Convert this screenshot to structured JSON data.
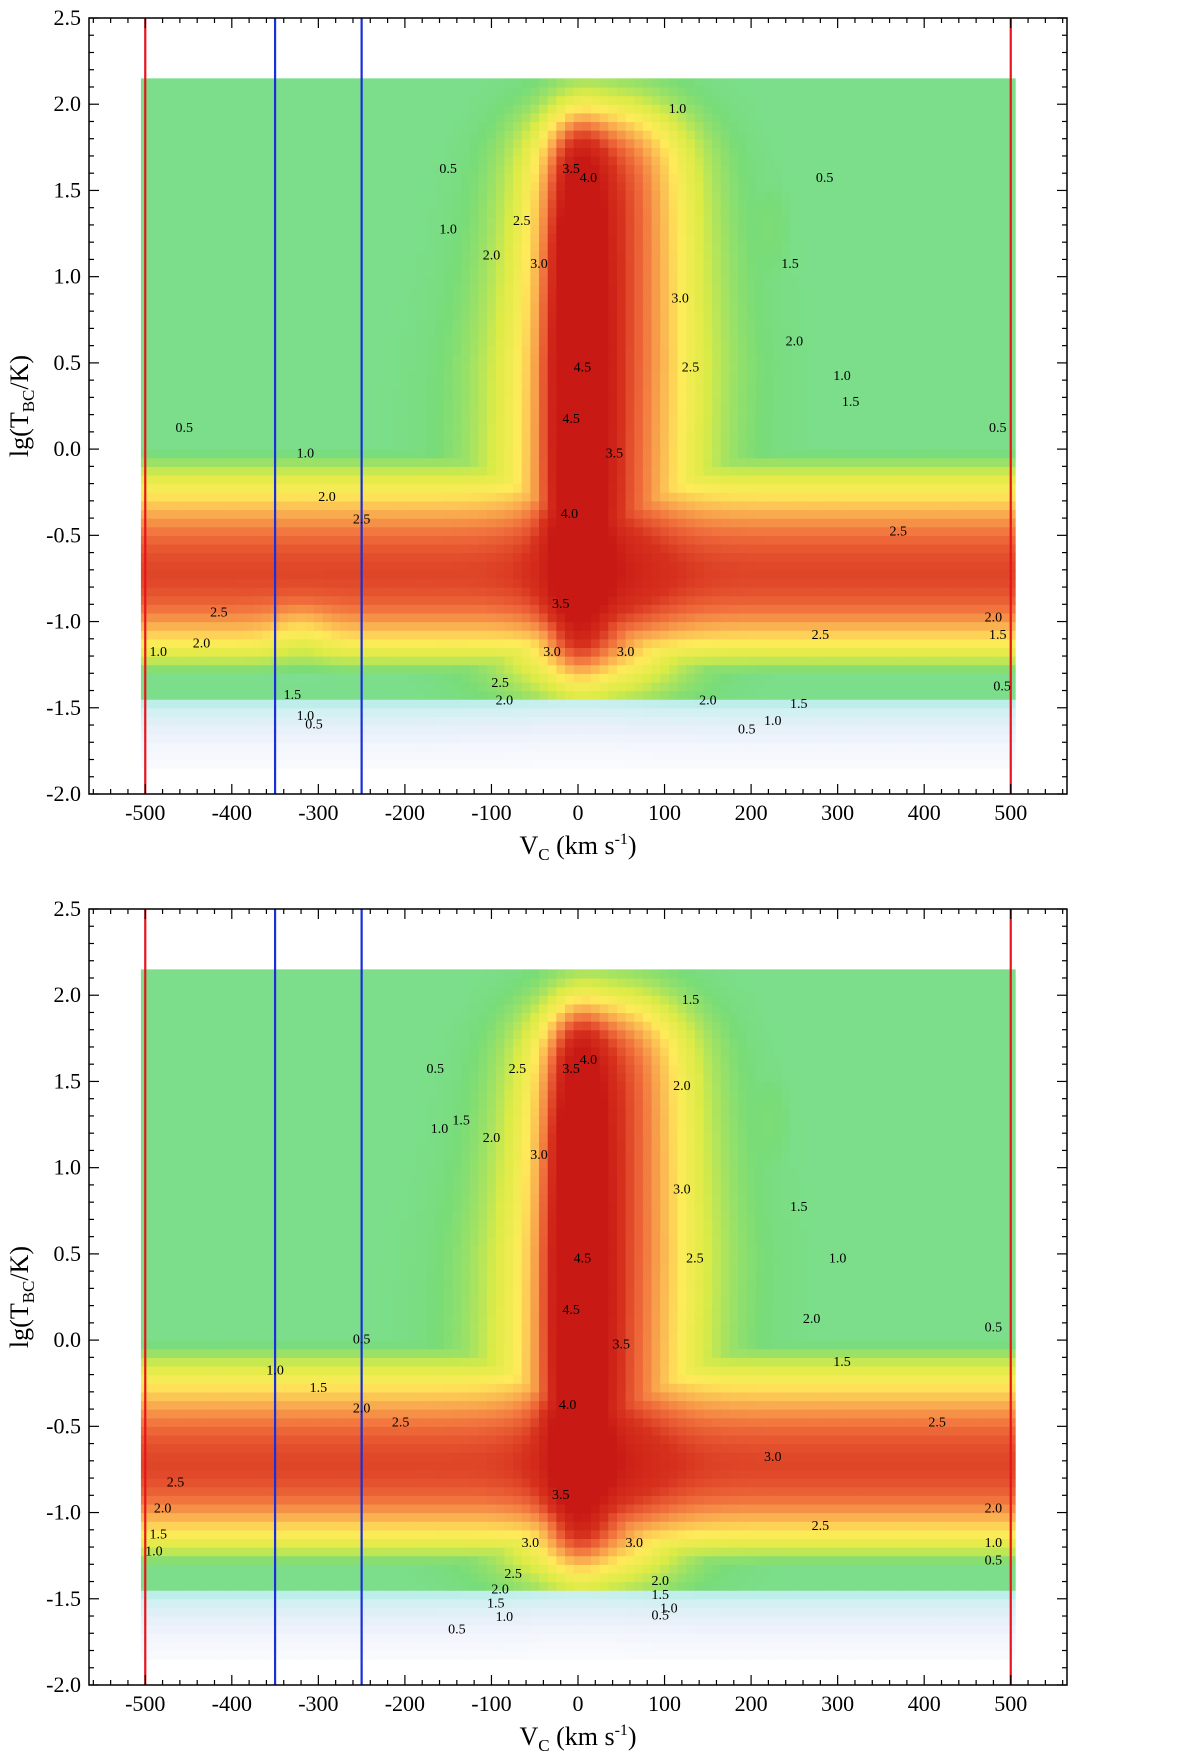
{
  "chart_data": [
    {
      "type": "heatmap",
      "panel": "top",
      "xlabel": {
        "base": "V",
        "sub": "C",
        "unit": " (km s",
        "sup": "-1",
        "close": ")"
      },
      "ylabel": {
        "pre": "lg(T",
        "sub": "BC",
        "post": "/K)"
      },
      "xlim": [
        -565,
        565
      ],
      "ylim": [
        -2.0,
        2.5
      ],
      "xticks": [
        -500,
        -400,
        -300,
        -200,
        -100,
        0,
        100,
        200,
        300,
        400,
        500
      ],
      "xtick_labels": [
        "-500",
        "-400",
        "-300",
        "-200",
        "-100",
        "0",
        "100",
        "200",
        "300",
        "400",
        "500"
      ],
      "yticks": [
        -2.0,
        -1.5,
        -1.0,
        -0.5,
        0.0,
        0.5,
        1.0,
        1.5,
        2.0,
        2.5
      ],
      "ytick_labels": [
        "-2.0",
        "-1.5",
        "-1.0",
        "-0.5",
        "0.0",
        "0.5",
        "1.0",
        "1.5",
        "2.0",
        "2.5"
      ],
      "vertical_lines": [
        {
          "x": -500,
          "color": "#e8141c"
        },
        {
          "x": 500,
          "color": "#e8141c"
        },
        {
          "x": -350,
          "color": "#1a2fd6"
        },
        {
          "x": -250,
          "color": "#1a2fd6"
        }
      ],
      "contour_labels": [
        {
          "text": "0.5",
          "x": -455,
          "y": 0.1
        },
        {
          "text": "1.0",
          "x": -315,
          "y": -0.05
        },
        {
          "text": "2.0",
          "x": -290,
          "y": -0.3
        },
        {
          "text": "2.5",
          "x": -250,
          "y": -0.43
        },
        {
          "text": "2.5",
          "x": -415,
          "y": -0.97
        },
        {
          "text": "2.0",
          "x": -435,
          "y": -1.15
        },
        {
          "text": "1.5",
          "x": -330,
          "y": -1.45
        },
        {
          "text": "1.0",
          "x": -315,
          "y": -1.57
        },
        {
          "text": "0.5",
          "x": -305,
          "y": -1.62
        },
        {
          "text": "0.5",
          "x": -150,
          "y": 1.6
        },
        {
          "text": "1.0",
          "x": -150,
          "y": 1.25
        },
        {
          "text": "2.0",
          "x": -100,
          "y": 1.1
        },
        {
          "text": "2.5",
          "x": -65,
          "y": 1.3
        },
        {
          "text": "3.0",
          "x": -45,
          "y": 1.05
        },
        {
          "text": "3.5",
          "x": -8,
          "y": 1.6
        },
        {
          "text": "4.0",
          "x": 12,
          "y": 1.55
        },
        {
          "text": "4.5",
          "x": 5,
          "y": 0.45
        },
        {
          "text": "4.5",
          "x": -8,
          "y": 0.15
        },
        {
          "text": "4.0",
          "x": -10,
          "y": -0.4
        },
        {
          "text": "3.5",
          "x": 42,
          "y": -0.05
        },
        {
          "text": "3.5",
          "x": -20,
          "y": -0.92
        },
        {
          "text": "3.0",
          "x": -30,
          "y": -1.2
        },
        {
          "text": "3.0",
          "x": 55,
          "y": -1.2
        },
        {
          "text": "2.5",
          "x": -90,
          "y": -1.38
        },
        {
          "text": "2.0",
          "x": -85,
          "y": -1.48
        },
        {
          "text": "3.0",
          "x": 118,
          "y": 0.85
        },
        {
          "text": "2.5",
          "x": 130,
          "y": 0.45
        },
        {
          "text": "1.0",
          "x": 115,
          "y": 1.95
        },
        {
          "text": "2.0",
          "x": 250,
          "y": 0.6
        },
        {
          "text": "1.5",
          "x": 245,
          "y": 1.05
        },
        {
          "text": "1.0",
          "x": 305,
          "y": 0.4
        },
        {
          "text": "1.5",
          "x": 315,
          "y": 0.25
        },
        {
          "text": "0.5",
          "x": 285,
          "y": 1.55
        },
        {
          "text": "2.5",
          "x": 370,
          "y": -0.5
        },
        {
          "text": "2.5",
          "x": 280,
          "y": -1.1
        },
        {
          "text": "2.0",
          "x": 150,
          "y": -1.48
        },
        {
          "text": "1.5",
          "x": 255,
          "y": -1.5
        },
        {
          "text": "1.0",
          "x": 225,
          "y": -1.6
        },
        {
          "text": "0.5",
          "x": 195,
          "y": -1.65
        },
        {
          "text": "0.5",
          "x": 485,
          "y": 0.1
        },
        {
          "text": "2.0",
          "x": 480,
          "y": -1.0
        },
        {
          "text": "1.5",
          "x": 485,
          "y": -1.1
        },
        {
          "text": "0.5",
          "x": 490,
          "y": -1.4
        },
        {
          "text": "1.0",
          "x": -485,
          "y": -1.2
        }
      ]
    },
    {
      "type": "heatmap",
      "panel": "bottom",
      "xlabel": {
        "base": "V",
        "sub": "C",
        "unit": " (km s",
        "sup": "-1",
        "close": ")"
      },
      "ylabel": {
        "pre": "lg(T",
        "sub": "BC",
        "post": "/K)"
      },
      "xlim": [
        -565,
        565
      ],
      "ylim": [
        -2.0,
        2.5
      ],
      "xticks": [
        -500,
        -400,
        -300,
        -200,
        -100,
        0,
        100,
        200,
        300,
        400,
        500
      ],
      "xtick_labels": [
        "-500",
        "-400",
        "-300",
        "-200",
        "-100",
        "0",
        "100",
        "200",
        "300",
        "400",
        "500"
      ],
      "yticks": [
        -2.0,
        -1.5,
        -1.0,
        -0.5,
        0.0,
        0.5,
        1.0,
        1.5,
        2.0,
        2.5
      ],
      "ytick_labels": [
        "-2.0",
        "-1.5",
        "-1.0",
        "-0.5",
        "0.0",
        "0.5",
        "1.0",
        "1.5",
        "2.0",
        "2.5"
      ],
      "vertical_lines": [
        {
          "x": -500,
          "color": "#e8141c"
        },
        {
          "x": 500,
          "color": "#e8141c"
        },
        {
          "x": -350,
          "color": "#1a2fd6"
        },
        {
          "x": -250,
          "color": "#1a2fd6"
        }
      ],
      "contour_labels": [
        {
          "text": "1.0",
          "x": -350,
          "y": -0.2
        },
        {
          "text": "1.5",
          "x": -300,
          "y": -0.3
        },
        {
          "text": "2.0",
          "x": -250,
          "y": -0.42
        },
        {
          "text": "2.5",
          "x": -205,
          "y": -0.5
        },
        {
          "text": "0.5",
          "x": -250,
          "y": -0.02
        },
        {
          "text": "2.5",
          "x": -465,
          "y": -0.85
        },
        {
          "text": "2.0",
          "x": -480,
          "y": -1.0
        },
        {
          "text": "1.5",
          "x": -485,
          "y": -1.15
        },
        {
          "text": "1.0",
          "x": -490,
          "y": -1.25
        },
        {
          "text": "0.5",
          "x": -165,
          "y": 1.55
        },
        {
          "text": "1.0",
          "x": -160,
          "y": 1.2
        },
        {
          "text": "1.5",
          "x": -135,
          "y": 1.25
        },
        {
          "text": "2.0",
          "x": -100,
          "y": 1.15
        },
        {
          "text": "2.5",
          "x": -70,
          "y": 1.55
        },
        {
          "text": "3.0",
          "x": -45,
          "y": 1.05
        },
        {
          "text": "3.5",
          "x": -8,
          "y": 1.55
        },
        {
          "text": "4.0",
          "x": 12,
          "y": 1.6
        },
        {
          "text": "4.5",
          "x": 5,
          "y": 0.45
        },
        {
          "text": "4.5",
          "x": -8,
          "y": 0.15
        },
        {
          "text": "4.0",
          "x": -12,
          "y": -0.4
        },
        {
          "text": "3.5",
          "x": 50,
          "y": -0.05
        },
        {
          "text": "3.5",
          "x": -20,
          "y": -0.92
        },
        {
          "text": "3.0",
          "x": -55,
          "y": -1.2
        },
        {
          "text": "3.0",
          "x": 65,
          "y": -1.2
        },
        {
          "text": "2.5",
          "x": -75,
          "y": -1.38
        },
        {
          "text": "2.0",
          "x": -90,
          "y": -1.47
        },
        {
          "text": "1.5",
          "x": -95,
          "y": -1.55
        },
        {
          "text": "1.0",
          "x": -85,
          "y": -1.63
        },
        {
          "text": "0.5",
          "x": -140,
          "y": -1.7
        },
        {
          "text": "2.0",
          "x": 120,
          "y": 1.45
        },
        {
          "text": "1.5",
          "x": 130,
          "y": 1.95
        },
        {
          "text": "3.0",
          "x": 120,
          "y": 0.85
        },
        {
          "text": "2.5",
          "x": 135,
          "y": 0.45
        },
        {
          "text": "3.0",
          "x": 225,
          "y": -0.7
        },
        {
          "text": "2.0",
          "x": 270,
          "y": 0.1
        },
        {
          "text": "1.5",
          "x": 255,
          "y": 0.75
        },
        {
          "text": "1.0",
          "x": 300,
          "y": 0.45
        },
        {
          "text": "1.5",
          "x": 305,
          "y": -0.15
        },
        {
          "text": "0.5",
          "x": 480,
          "y": 0.05
        },
        {
          "text": "2.5",
          "x": 415,
          "y": -0.5
        },
        {
          "text": "2.5",
          "x": 280,
          "y": -1.1
        },
        {
          "text": "2.0",
          "x": 95,
          "y": -1.42
        },
        {
          "text": "1.5",
          "x": 95,
          "y": -1.5
        },
        {
          "text": "1.0",
          "x": 105,
          "y": -1.58
        },
        {
          "text": "0.5",
          "x": 95,
          "y": -1.62
        },
        {
          "text": "2.0",
          "x": 480,
          "y": -1.0
        },
        {
          "text": "1.0",
          "x": 480,
          "y": -1.2
        },
        {
          "text": "0.5",
          "x": 480,
          "y": -1.3
        }
      ]
    }
  ]
}
